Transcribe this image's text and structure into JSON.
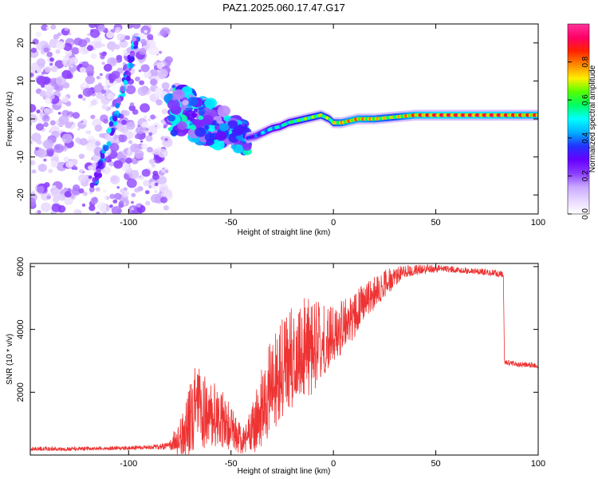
{
  "title": "PAZ1.2025.060.17.47.G17",
  "chart_data": [
    {
      "type": "heatmap",
      "xlabel": "Height of straight line (km)",
      "ylabel": "Frequency (Hz)",
      "xlim": [
        -148,
        100
      ],
      "ylim": [
        -25,
        25
      ],
      "xticks": [
        "-100",
        "-50",
        "0",
        "50",
        "100"
      ],
      "yticks": [
        "20",
        "10",
        "0",
        "-10",
        "-20"
      ],
      "colorbar": {
        "label": "Normalized spectral amplitude",
        "range": [
          0,
          1
        ],
        "ticks": [
          "0.0",
          "0.2",
          "0.4",
          "0.6",
          "0.8"
        ],
        "colors": [
          "#ffffff",
          "#e8d8ff",
          "#c9a8ff",
          "#8a3cff",
          "#6600ff",
          "#2233ff",
          "#00b0ff",
          "#00ffff",
          "#00ff66",
          "#55ff00",
          "#ffee00",
          "#ff8800",
          "#ff2200",
          "#ff0066",
          "#ff3399"
        ]
      },
      "ridge": {
        "x": [
          -42,
          -38,
          -34,
          -30,
          -26,
          -22,
          -18,
          -14,
          -10,
          -6,
          -2,
          0,
          4,
          8,
          12,
          20,
          30,
          40,
          50,
          60,
          70,
          80,
          90,
          100
        ],
        "y": [
          -5,
          -4.5,
          -3.5,
          -2.5,
          -2,
          -1,
          -0.5,
          0,
          0.5,
          1,
          0,
          -1,
          -1,
          -0.5,
          0,
          0,
          0.5,
          1,
          1,
          1,
          1,
          1,
          1,
          1
        ],
        "amplitude": [
          0.35,
          0.4,
          0.5,
          0.55,
          0.55,
          0.6,
          0.65,
          0.7,
          0.7,
          0.75,
          0.7,
          0.75,
          0.8,
          0.85,
          0.85,
          0.8,
          0.75,
          0.9,
          0.95,
          0.95,
          0.95,
          0.95,
          0.9,
          0.9
        ]
      },
      "noise_region": {
        "x_range": [
          -148,
          -80
        ],
        "y_range": [
          -25,
          25
        ],
        "amplitude": 0.15
      },
      "transition_region": {
        "x_range": [
          -80,
          -42
        ],
        "y_range": [
          -15,
          5
        ],
        "amplitude": 0.3
      },
      "diagonal_trace": {
        "x": [
          -118,
          -110,
          -104,
          -99,
          -96
        ],
        "y": [
          -20,
          -5,
          5,
          15,
          22
        ],
        "amplitude": 0.25
      }
    },
    {
      "type": "line",
      "xlabel": "Height of straight line (km)",
      "ylabel": "SNR (10 * v/v)",
      "xlim": [
        -148,
        100
      ],
      "ylim": [
        0,
        6100
      ],
      "xticks": [
        "-100",
        "-50",
        "0",
        "50",
        "100"
      ],
      "yticks": [
        "2000",
        "4000",
        "6000"
      ],
      "color": "#ee3333",
      "series": [
        {
          "x": [
            -148,
            -130,
            -110,
            -90,
            -80,
            -75,
            -70,
            -67,
            -65,
            -60,
            -55,
            -50,
            -45,
            -40,
            -35,
            -30,
            -25,
            -20,
            -15,
            -10,
            -5,
            0,
            5,
            10,
            15,
            20,
            25,
            30,
            35,
            40,
            50,
            60,
            70,
            80,
            83,
            83.5,
            84,
            90,
            100
          ],
          "y": [
            200,
            200,
            220,
            250,
            300,
            600,
            1200,
            2000,
            1500,
            1400,
            1200,
            900,
            500,
            800,
            1600,
            2400,
            2800,
            3100,
            3500,
            3600,
            3700,
            3900,
            4200,
            4500,
            4900,
            5200,
            5500,
            5700,
            5850,
            5900,
            5950,
            5900,
            5850,
            5800,
            5750,
            3000,
            2950,
            2900,
            2850
          ],
          "noise_amp": [
            60,
            60,
            60,
            60,
            120,
            600,
            1100,
            1300,
            1100,
            1000,
            900,
            700,
            400,
            700,
            1200,
            1500,
            1600,
            1600,
            1500,
            1400,
            1200,
            1000,
            800,
            700,
            600,
            500,
            400,
            300,
            200,
            150,
            120,
            100,
            100,
            100,
            100,
            80,
            80,
            80,
            80
          ]
        }
      ]
    }
  ]
}
